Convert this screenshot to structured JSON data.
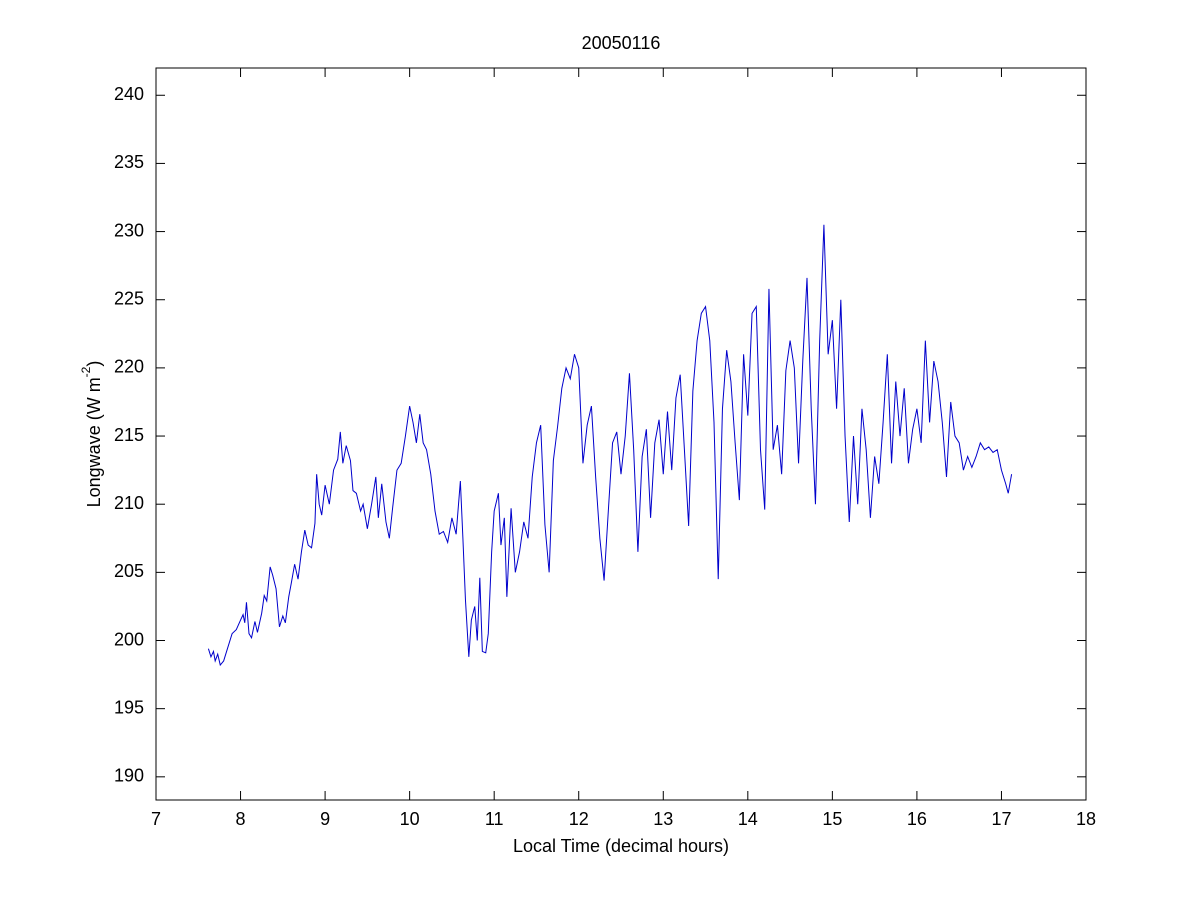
{
  "chart_data": {
    "type": "line",
    "title": "20050116",
    "x_label": "Local Time (decimal hours)",
    "y_label": [
      "Longwave (W m",
      "-2",
      ")"
    ],
    "xlim": [
      7,
      18
    ],
    "xticks": [
      7,
      8,
      9,
      10,
      11,
      12,
      13,
      14,
      15,
      16,
      17,
      18
    ],
    "ylim": [
      188.3,
      242
    ],
    "yticks": [
      190,
      195,
      200,
      205,
      210,
      215,
      220,
      225,
      230,
      235,
      240
    ],
    "grid": false,
    "series": [
      {
        "color": "#0000cc",
        "x": [
          7.62,
          7.65,
          7.68,
          7.7,
          7.73,
          7.76,
          7.8,
          7.85,
          7.9,
          7.95,
          8.0,
          8.03,
          8.05,
          8.07,
          8.1,
          8.13,
          8.17,
          8.2,
          8.25,
          8.28,
          8.31,
          8.35,
          8.38,
          8.42,
          8.46,
          8.5,
          8.53,
          8.57,
          8.6,
          8.64,
          8.68,
          8.72,
          8.76,
          8.8,
          8.84,
          8.88,
          8.9,
          8.93,
          8.96,
          9.0,
          9.05,
          9.1,
          9.15,
          9.18,
          9.21,
          9.25,
          9.3,
          9.33,
          9.37,
          9.42,
          9.45,
          9.5,
          9.55,
          9.6,
          9.63,
          9.67,
          9.72,
          9.76,
          9.8,
          9.85,
          9.9,
          9.95,
          10.0,
          10.04,
          10.08,
          10.12,
          10.16,
          10.2,
          10.25,
          10.3,
          10.35,
          10.4,
          10.45,
          10.5,
          10.55,
          10.6,
          10.63,
          10.66,
          10.7,
          10.73,
          10.77,
          10.8,
          10.83,
          10.86,
          10.9,
          10.93,
          10.97,
          11.0,
          11.05,
          11.08,
          11.12,
          11.15,
          11.2,
          11.25,
          11.3,
          11.35,
          11.4,
          11.45,
          11.5,
          11.55,
          11.6,
          11.65,
          11.7,
          11.75,
          11.8,
          11.85,
          11.9,
          11.95,
          12.0,
          12.05,
          12.1,
          12.15,
          12.2,
          12.25,
          12.3,
          12.35,
          12.4,
          12.45,
          12.5,
          12.55,
          12.6,
          12.65,
          12.7,
          12.75,
          12.8,
          12.85,
          12.9,
          12.95,
          13.0,
          13.05,
          13.1,
          13.15,
          13.2,
          13.25,
          13.3,
          13.35,
          13.4,
          13.45,
          13.5,
          13.55,
          13.6,
          13.65,
          13.7,
          13.75,
          13.8,
          13.85,
          13.9,
          13.95,
          14.0,
          14.05,
          14.1,
          14.15,
          14.2,
          14.25,
          14.3,
          14.35,
          14.4,
          14.45,
          14.5,
          14.55,
          14.6,
          14.65,
          14.7,
          14.75,
          14.8,
          14.85,
          14.9,
          14.95,
          15.0,
          15.05,
          15.1,
          15.15,
          15.2,
          15.25,
          15.3,
          15.35,
          15.4,
          15.45,
          15.5,
          15.55,
          15.6,
          15.65,
          15.7,
          15.75,
          15.8,
          15.85,
          15.9,
          15.95,
          16.0,
          16.05,
          16.1,
          16.15,
          16.2,
          16.25,
          16.3,
          16.35,
          16.4,
          16.45,
          16.5,
          16.55,
          16.6,
          16.65,
          16.7,
          16.75,
          16.8,
          16.85,
          16.9,
          16.95,
          17.0,
          17.05,
          17.08,
          17.12
        ],
        "values": [
          199.4,
          198.8,
          199.2,
          198.5,
          199.0,
          198.2,
          198.5,
          199.5,
          200.5,
          200.8,
          201.5,
          201.9,
          201.3,
          202.8,
          200.5,
          200.2,
          201.4,
          200.6,
          202.0,
          203.3,
          202.9,
          205.4,
          204.8,
          203.8,
          201.0,
          201.8,
          201.3,
          203.2,
          204.2,
          205.6,
          204.5,
          206.5,
          208.1,
          207.0,
          206.8,
          208.6,
          212.2,
          210.0,
          209.2,
          211.4,
          210.0,
          212.5,
          213.3,
          215.3,
          213.0,
          214.3,
          213.2,
          211.0,
          210.8,
          209.5,
          210.0,
          208.2,
          210.0,
          212.0,
          209.0,
          211.5,
          208.7,
          207.5,
          209.8,
          212.5,
          213.0,
          215.0,
          217.2,
          216.0,
          214.5,
          216.6,
          214.5,
          214.0,
          212.2,
          209.5,
          207.8,
          208.0,
          207.2,
          209.0,
          207.8,
          211.7,
          207.5,
          203.0,
          198.8,
          201.5,
          202.5,
          200.0,
          204.6,
          199.2,
          199.1,
          200.5,
          206.5,
          209.5,
          210.8,
          207.0,
          209.0,
          203.2,
          209.7,
          205.0,
          206.5,
          208.7,
          207.5,
          212.0,
          214.5,
          215.8,
          208.5,
          205.0,
          213.2,
          215.7,
          218.5,
          220.0,
          219.2,
          221.0,
          220.0,
          213.0,
          215.8,
          217.2,
          212.0,
          207.5,
          204.4,
          209.5,
          214.5,
          215.3,
          212.2,
          215.0,
          219.6,
          214.0,
          206.5,
          213.5,
          215.5,
          209.0,
          214.5,
          216.2,
          212.2,
          216.8,
          212.5,
          217.8,
          219.5,
          214.0,
          208.4,
          218.3,
          222.0,
          224.0,
          224.5,
          222.0,
          216.0,
          204.5,
          217.0,
          221.3,
          219.0,
          214.5,
          210.3,
          221.0,
          216.5,
          224.0,
          224.5,
          214.0,
          209.6,
          225.8,
          214.0,
          215.8,
          212.2,
          219.8,
          222.0,
          220.0,
          213.0,
          220.5,
          226.6,
          217.0,
          210.0,
          222.0,
          230.5,
          221.0,
          223.5,
          217.0,
          225.0,
          215.0,
          208.7,
          215.0,
          210.0,
          217.0,
          214.0,
          209.0,
          213.5,
          211.5,
          216.0,
          221.0,
          213.0,
          219.0,
          215.0,
          218.5,
          213.0,
          215.5,
          217.0,
          214.5,
          222.0,
          216.0,
          220.5,
          219.0,
          216.0,
          212.0,
          217.5,
          215.0,
          214.5,
          212.5,
          213.5,
          212.7,
          213.5,
          214.5,
          214.0,
          214.2,
          213.8,
          214.0,
          212.5,
          211.5,
          210.8,
          212.2
        ]
      }
    ]
  }
}
